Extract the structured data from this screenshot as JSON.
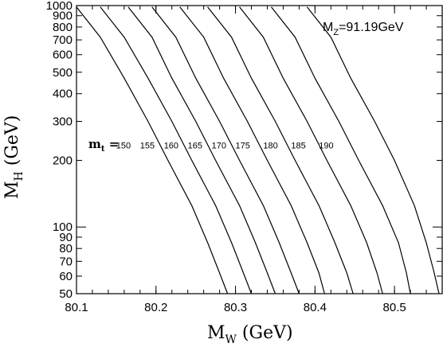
{
  "chart_data": {
    "type": "line",
    "title": "",
    "annotation": {
      "main": "M",
      "sub": "Z",
      "rest": "=91.19GeV"
    },
    "xlabel": {
      "main": "M",
      "sub": "W",
      "rest": " (GeV)"
    },
    "ylabel": {
      "main": "M",
      "sub": "H",
      "rest": " (GeV)"
    },
    "xlim": [
      80.1,
      80.56
    ],
    "ylim": [
      50,
      1000
    ],
    "yscale": "log",
    "x_ticks": [
      "80.1",
      "80.2",
      "80.3",
      "80.4",
      "80.5"
    ],
    "y_ticks": [
      "50",
      "60",
      "70",
      "80",
      "90",
      "100",
      "200",
      "300",
      "400",
      "500",
      "600",
      "700",
      "800",
      "900",
      "1000"
    ],
    "mt_label": {
      "main": "m",
      "sub": "t",
      "rest": " ="
    },
    "series": [
      {
        "name": "150",
        "label_at": [
          80.175,
          200
        ],
        "points": [
          [
            80.1,
            985
          ],
          [
            80.13,
            720
          ],
          [
            80.16,
            470
          ],
          [
            80.19,
            300
          ],
          [
            80.215,
            200
          ],
          [
            80.245,
            125
          ],
          [
            80.265,
            85
          ],
          [
            80.28,
            62
          ],
          [
            80.29,
            50
          ]
        ]
      },
      {
        "name": "155",
        "label_at": [
          80.205,
          200
        ],
        "points": [
          [
            80.13,
            985
          ],
          [
            80.16,
            720
          ],
          [
            80.19,
            470
          ],
          [
            80.22,
            300
          ],
          [
            80.245,
            200
          ],
          [
            80.275,
            125
          ],
          [
            80.295,
            85
          ],
          [
            80.31,
            62
          ],
          [
            80.32,
            50
          ]
        ]
      },
      {
        "name": "160",
        "label_at": [
          80.235,
          200
        ],
        "points": [
          [
            80.165,
            985
          ],
          [
            80.195,
            720
          ],
          [
            80.22,
            470
          ],
          [
            80.25,
            300
          ],
          [
            80.275,
            200
          ],
          [
            80.305,
            125
          ],
          [
            80.325,
            85
          ],
          [
            80.34,
            62
          ],
          [
            80.35,
            50
          ]
        ]
      },
      {
        "name": "165",
        "label_at": [
          80.265,
          200
        ],
        "points": [
          [
            80.195,
            985
          ],
          [
            80.225,
            720
          ],
          [
            80.25,
            470
          ],
          [
            80.28,
            300
          ],
          [
            80.305,
            200
          ],
          [
            80.335,
            125
          ],
          [
            80.355,
            85
          ],
          [
            80.37,
            62
          ],
          [
            80.38,
            50
          ]
        ]
      },
      {
        "name": "170",
        "label_at": [
          80.295,
          200
        ],
        "points": [
          [
            80.23,
            985
          ],
          [
            80.26,
            720
          ],
          [
            80.285,
            470
          ],
          [
            80.315,
            300
          ],
          [
            80.34,
            200
          ],
          [
            80.37,
            125
          ],
          [
            80.39,
            85
          ],
          [
            80.405,
            62
          ],
          [
            80.412,
            50
          ]
        ]
      },
      {
        "name": "175",
        "label_at": [
          80.325,
          200
        ],
        "points": [
          [
            80.265,
            985
          ],
          [
            80.295,
            720
          ],
          [
            80.32,
            470
          ],
          [
            80.35,
            300
          ],
          [
            80.375,
            200
          ],
          [
            80.405,
            125
          ],
          [
            80.425,
            85
          ],
          [
            80.44,
            62
          ],
          [
            80.448,
            50
          ]
        ]
      },
      {
        "name": "180",
        "label_at": [
          80.36,
          200
        ],
        "points": [
          [
            80.305,
            985
          ],
          [
            80.335,
            720
          ],
          [
            80.36,
            470
          ],
          [
            80.39,
            300
          ],
          [
            80.415,
            200
          ],
          [
            80.445,
            125
          ],
          [
            80.465,
            85
          ],
          [
            80.478,
            62
          ],
          [
            80.485,
            50
          ]
        ]
      },
      {
        "name": "185",
        "label_at": [
          80.395,
          200
        ],
        "points": [
          [
            80.345,
            985
          ],
          [
            80.375,
            720
          ],
          [
            80.4,
            470
          ],
          [
            80.43,
            300
          ],
          [
            80.455,
            200
          ],
          [
            80.485,
            125
          ],
          [
            80.505,
            85
          ],
          [
            80.515,
            62
          ],
          [
            80.52,
            50
          ]
        ]
      },
      {
        "name": "190",
        "label_at": [
          80.43,
          200
        ],
        "points": [
          [
            80.39,
            985
          ],
          [
            80.42,
            720
          ],
          [
            80.445,
            470
          ],
          [
            80.475,
            300
          ],
          [
            80.5,
            200
          ],
          [
            80.525,
            125
          ],
          [
            80.54,
            85
          ],
          [
            80.55,
            62
          ],
          [
            80.556,
            50
          ]
        ]
      }
    ]
  }
}
